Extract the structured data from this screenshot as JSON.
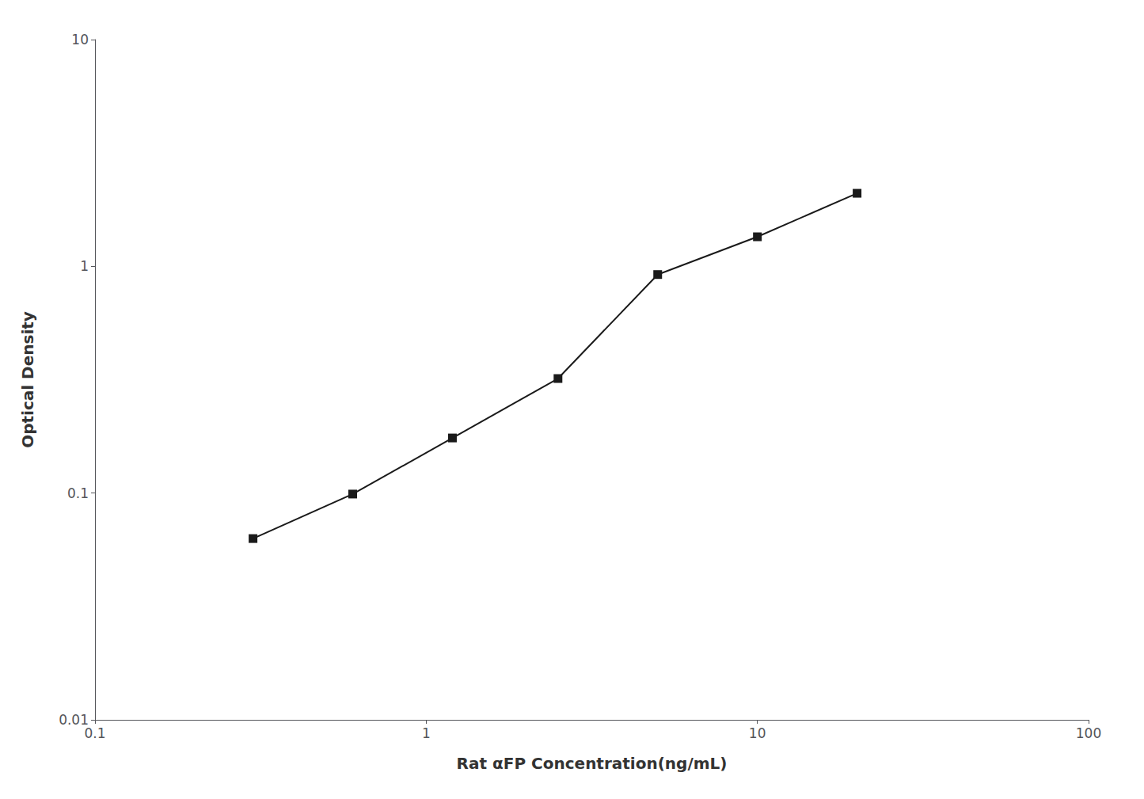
{
  "chart_data": {
    "type": "line",
    "x": [
      0.3,
      0.6,
      1.2,
      2.5,
      5.0,
      10.0,
      20.0
    ],
    "values": [
      0.063,
      0.099,
      0.175,
      0.32,
      0.92,
      1.35,
      2.1
    ],
    "xlabel": "Rat αFP Concentration(ng/mL)",
    "ylabel": "Optical Density",
    "xlim": [
      0.1,
      100
    ],
    "ylim": [
      0.01,
      10
    ],
    "xticks": [
      0.1,
      1,
      10,
      100
    ],
    "yticks": [
      0.01,
      0.1,
      1,
      10
    ],
    "log": true,
    "grid": false,
    "color": "#1a1a1a",
    "marker": "square"
  }
}
